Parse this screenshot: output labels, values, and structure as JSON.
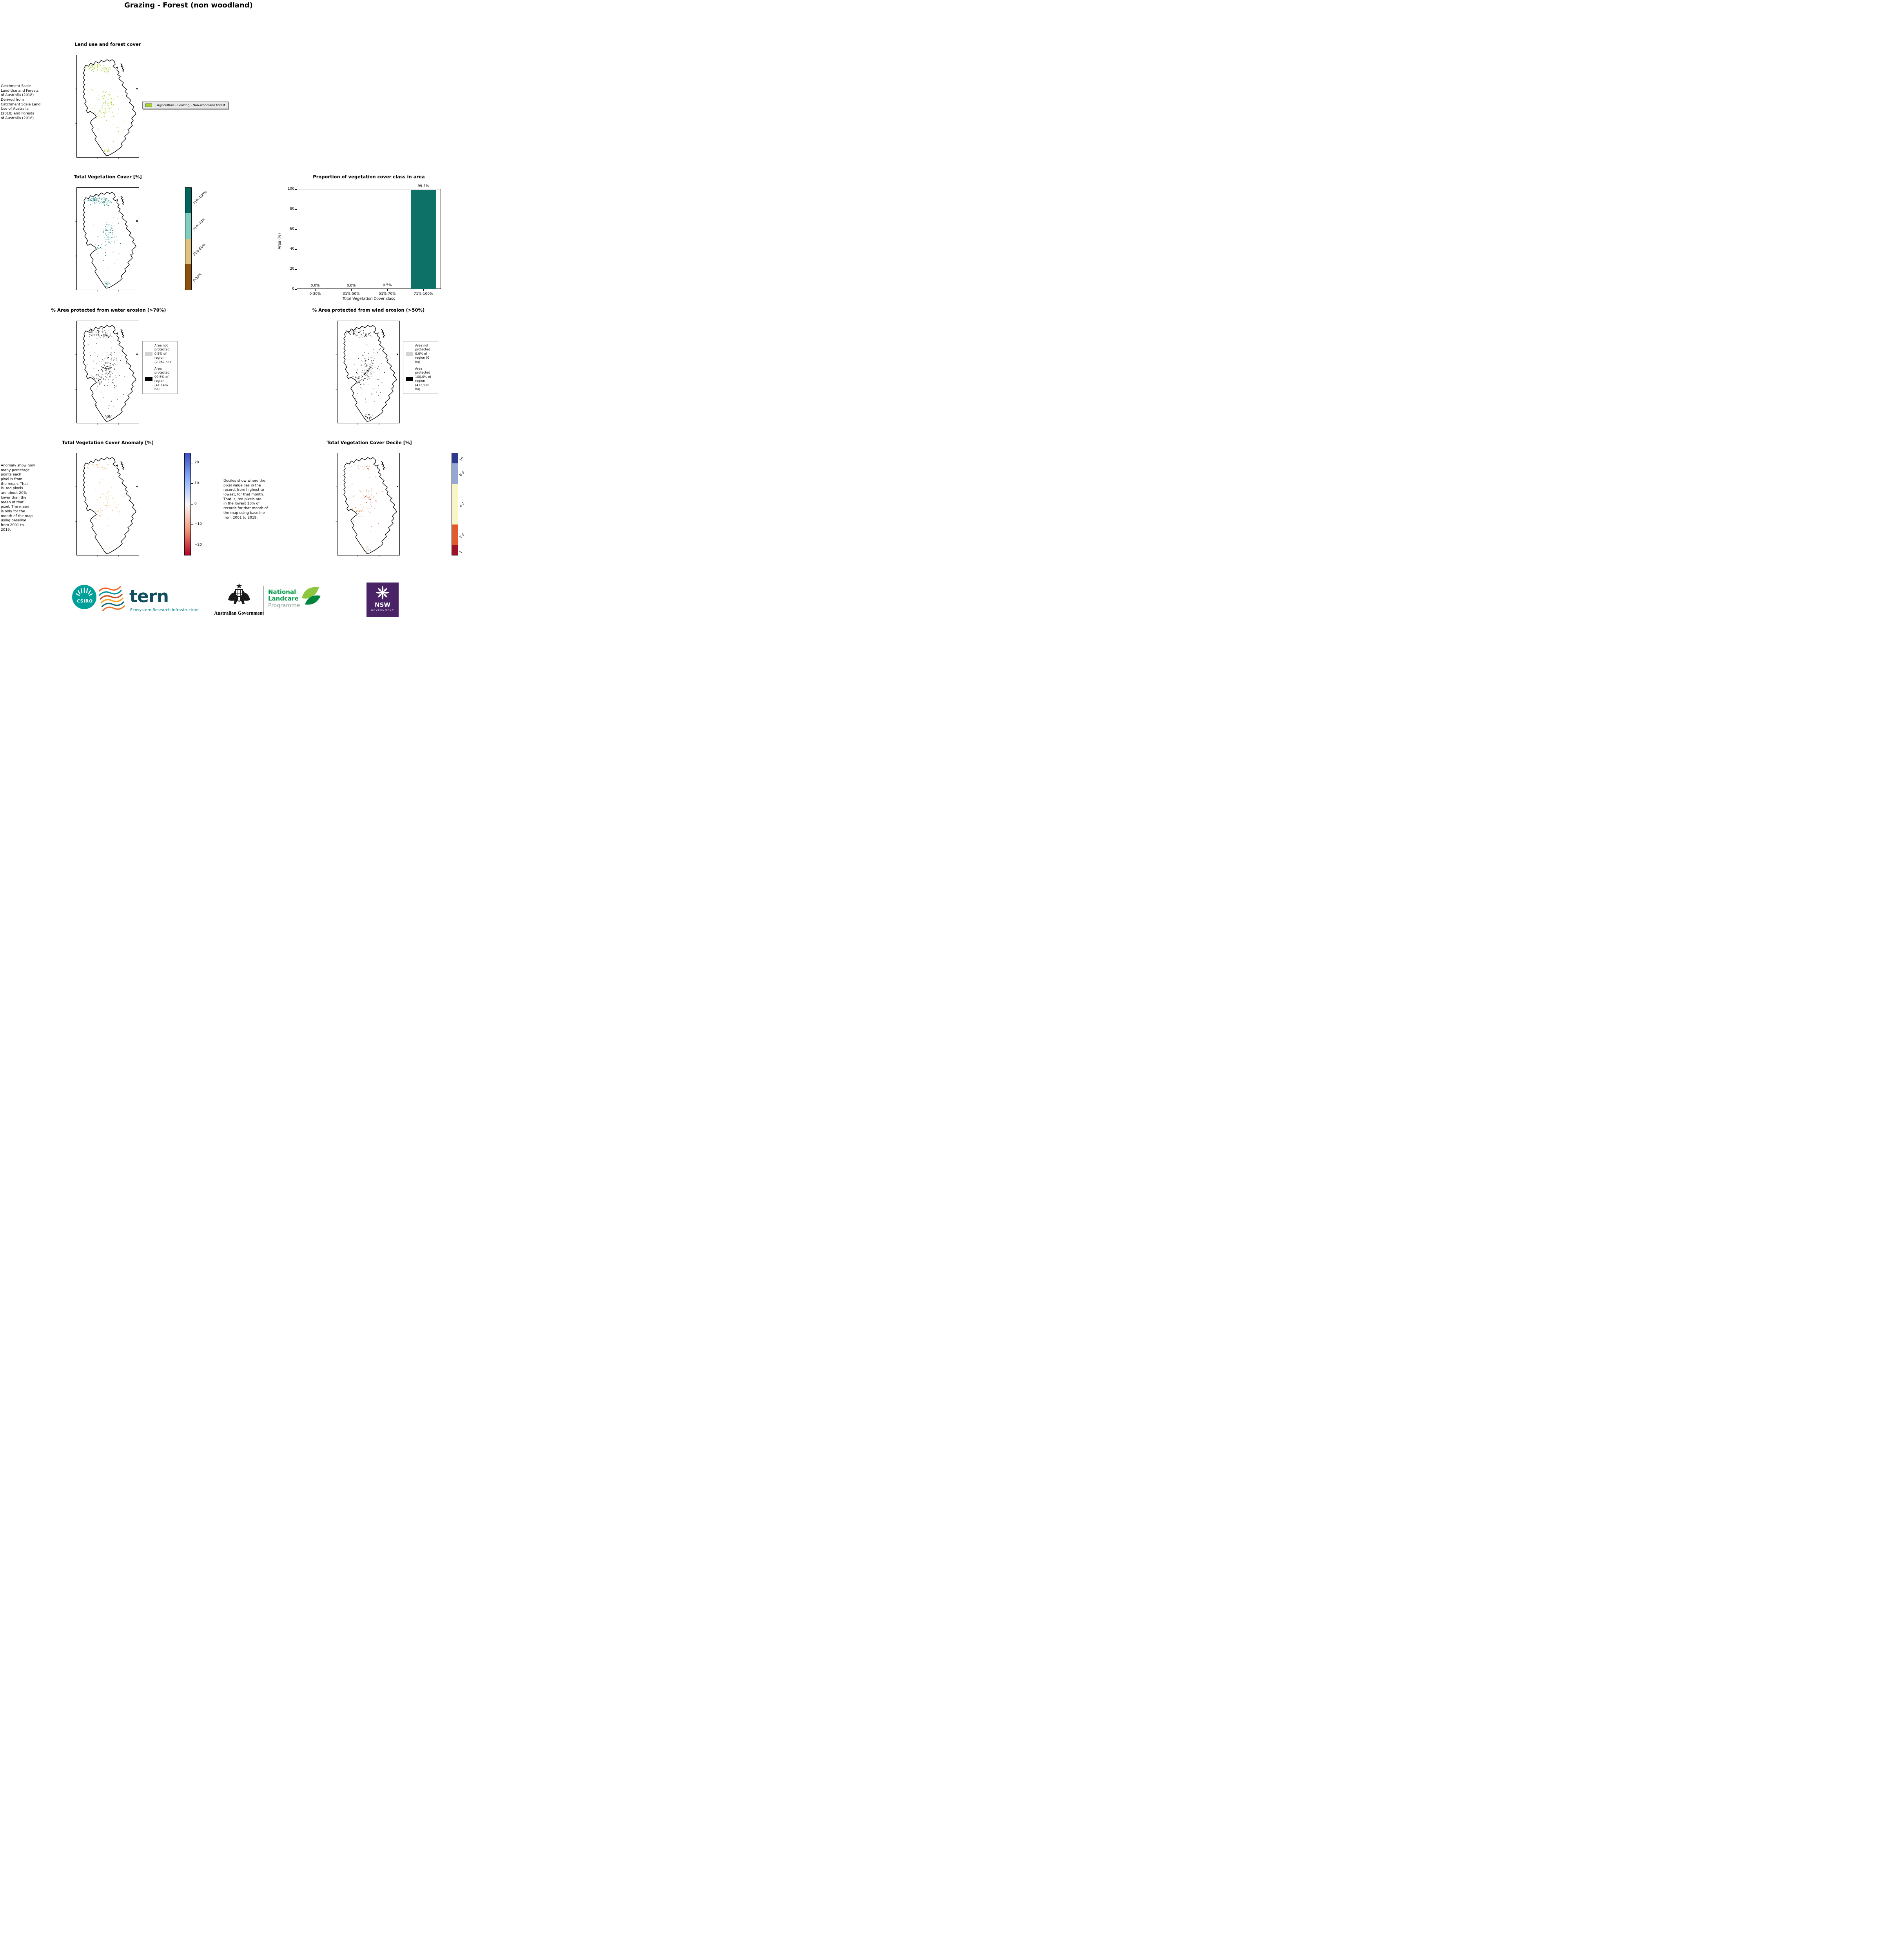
{
  "page": {
    "title": "Grazing - Forest (non woodland)"
  },
  "landuse": {
    "title": "Land use and forest cover",
    "caption": " Catchment Scale\nLand Use and Forests\nof Australia (2018)\nDerived from\nCatchment Scale Land\nUse of Australia\n(2018) and Forests\nof Australia (2018)",
    "legend_label": "1 Agriculture - Grazing - Non-woodland forest"
  },
  "colors": {
    "landuse_swatch": "#a4d233"
  },
  "tvc": {
    "title": "Total Vegetation Cover [%]",
    "classes": [
      {
        "label": "71%-100%",
        "color": "#01665e"
      },
      {
        "label": "51%-70%",
        "color": "#80cdc1"
      },
      {
        "label": "31%-50%",
        "color": "#dfc27d"
      },
      {
        "label": "0-30%",
        "color": "#8c510a"
      }
    ]
  },
  "proportion": {
    "title": "Proportion of vegetation cover class in area"
  },
  "chart_data": {
    "type": "bar",
    "title": "Proportion of vegetation cover class in area",
    "categories": [
      "0-30%",
      "31%-50%",
      "51%-70%",
      "71%-100%"
    ],
    "values": [
      0.0,
      0.0,
      0.5,
      99.5
    ],
    "bar_labels": [
      "0.0%",
      "0.0%",
      "0.5%",
      "99.5%"
    ],
    "xlabel": "Total Vegetation Cover class",
    "ylabel": "Area (%)",
    "ylim": [
      0,
      100
    ],
    "yticks": [
      0,
      20,
      40,
      60,
      80,
      100
    ],
    "bar_color": "#0e7168",
    "legend": "none",
    "grid": false
  },
  "water": {
    "title": "% Area protected from water erosion (>70%)",
    "legend": [
      {
        "swatch": "#d3d3d3",
        "label": "Area not\nprotected\n0.5% of\nregion\n(2,062 ha)"
      },
      {
        "swatch": "#000000",
        "label": "Area\nprotected\n99.5% of\nregion\n(410,487\nha)"
      }
    ]
  },
  "wind": {
    "title": "% Area protected from wind erosion (>50%)",
    "legend": [
      {
        "swatch": "#d3d3d3",
        "label": "Area not\nprotected\n0.0% of\nregion (0\nha)"
      },
      {
        "swatch": "#000000",
        "label": "Area\nprotected\n100.0% of\nregion\n(412,550\nha)"
      }
    ]
  },
  "anomaly": {
    "title": "Total Vegetation Cover Anomaly [%]",
    "caption": "Anomaly show how\nmany percetage\npoints each\npixel is from\nthe mean. That\nis, red pixels\nare about 20%\nlower than the\nmean of that\npixel. The mean\nis only for the\nmonth of the map\nusing baseline\nfrom 2001 to\n2019.",
    "ticks": [
      "20",
      "10",
      "0",
      "−10",
      "−20"
    ],
    "gradient": [
      "#3b4cc0",
      "#8caffe",
      "#f7f7f7",
      "#f4987a",
      "#b40426"
    ]
  },
  "decile": {
    "title": "Total Vegetation Cover Decile [%]",
    "caption": "Deciles show where the\npixel value lies in the\nrecord, from highest to\nlowest, for that month.\nThat is, red pixels are\nin the lowest 10% of\nrecords for that month of\nthe map using baseline\nfrom 2001 to 2019.",
    "classes": [
      {
        "label": "10",
        "color": "#2d3a8f",
        "span": 1
      },
      {
        "label": "8-9",
        "color": "#96a7d4",
        "span": 2
      },
      {
        "label": "4-7",
        "color": "#f8f6c8",
        "span": 4
      },
      {
        "label": "2-3",
        "color": "#e05a2b",
        "span": 2
      },
      {
        "label": "1",
        "color": "#9e1228",
        "span": 1
      }
    ]
  },
  "footer": {
    "csiro_label": "CSIRO",
    "tern_label": "tern",
    "tern_subtitle": "Ecosystem Research Infrastructure",
    "ausgov_label": "Australian Government",
    "nlp_line1": "National",
    "nlp_line2": "Landcare",
    "nlp_line3": "Programme",
    "nsw_label": "NSW",
    "nsw_sub": "GOVERNMENT"
  }
}
